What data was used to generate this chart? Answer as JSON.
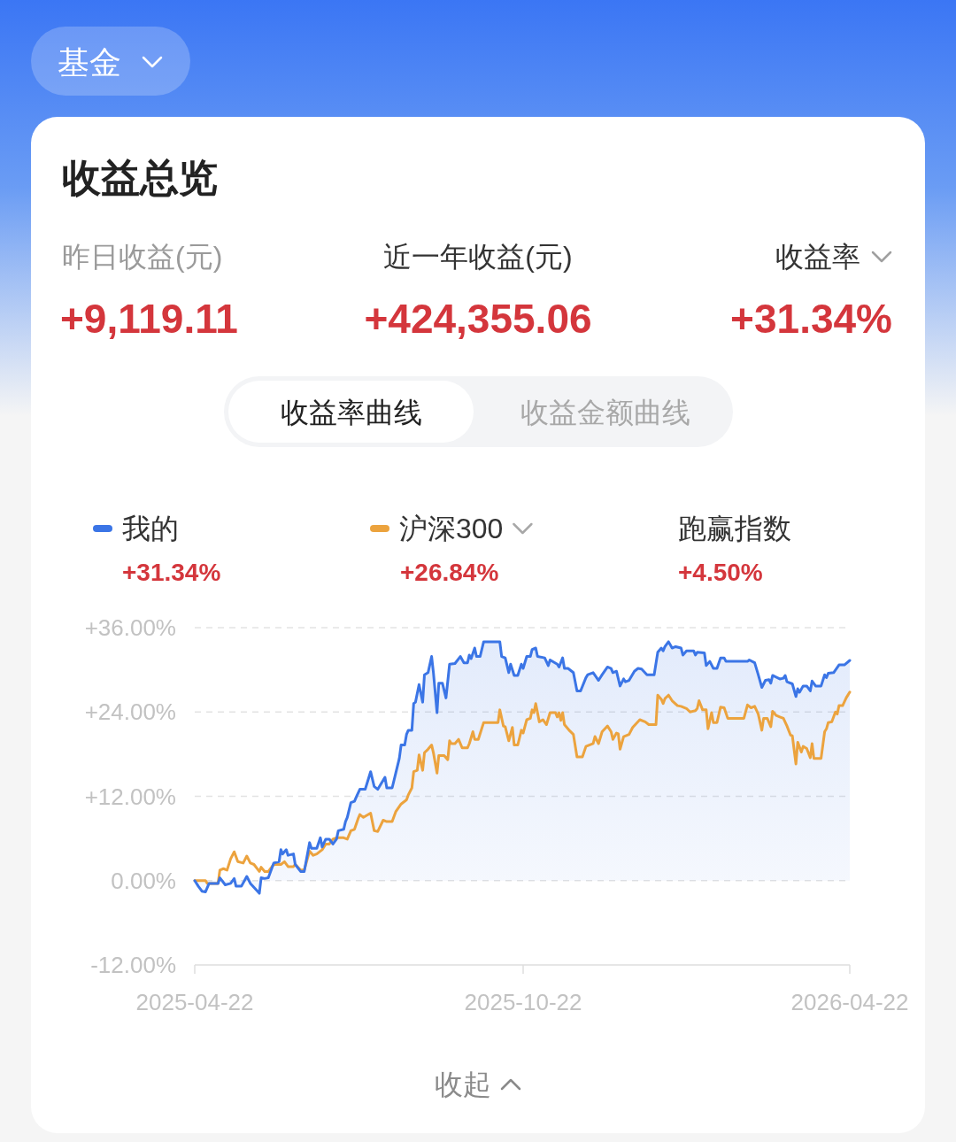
{
  "chart_data": {
    "type": "line",
    "title": "收益总览",
    "annotations": [
      "基金",
      "昨日收益(元)",
      "+9,119.11",
      "近一年收益(元)",
      "+424,355.06",
      "收益率",
      "+31.34%",
      "收益率曲线",
      "收益金额曲线",
      "+31.34%",
      "+26.84%",
      "跑赢指数",
      "+4.50%",
      "收起"
    ],
    "xlim": [
      "2025-04-22",
      "2026-04-22"
    ],
    "xticks": [
      "2025-04-22",
      "2025-10-22",
      "2026-04-22"
    ],
    "ylim": [
      -12,
      36
    ],
    "yticks": [
      {
        "value": 36,
        "label": "+36.00%"
      },
      {
        "value": 24,
        "label": "+24.00%"
      },
      {
        "value": 12,
        "label": "+12.00%"
      },
      {
        "value": 0,
        "label": "0.00%"
      },
      {
        "value": -12,
        "label": "-12.00%"
      }
    ],
    "grid": "y",
    "legend": "top",
    "series": [
      {
        "name": "我的",
        "type": "area",
        "color": "#3b75e6",
        "x": [
          "2025-04-22",
          "2025-04-24",
          "2025-04-26",
          "2025-04-28",
          "2025-04-30",
          "2025-05-05",
          "2025-05-06",
          "2025-05-09",
          "2025-05-12",
          "2025-05-14",
          "2025-05-15",
          "2025-05-18",
          "2025-05-21",
          "2025-05-23",
          "2025-05-28",
          "2025-05-29",
          "2025-05-31",
          "2025-06-02",
          "2025-06-05",
          "2025-06-08",
          "2025-06-09",
          "2025-06-10",
          "2025-06-12",
          "2025-06-13",
          "2025-06-16",
          "2025-06-17",
          "2025-06-20",
          "2025-06-22",
          "2025-06-25",
          "2025-06-26",
          "2025-06-29",
          "2025-07-01",
          "2025-07-02",
          "2025-07-04",
          "2025-07-06",
          "2025-07-08",
          "2025-07-10",
          "2025-07-11",
          "2025-07-14",
          "2025-07-15",
          "2025-07-16",
          "2025-07-18",
          "2025-07-20",
          "2025-07-21",
          "2025-07-23",
          "2025-07-26",
          "2025-07-29",
          "2025-07-31",
          "2025-08-02",
          "2025-08-06",
          "2025-08-07",
          "2025-08-10",
          "2025-08-12",
          "2025-08-14",
          "2025-08-15",
          "2025-08-17",
          "2025-08-18",
          "2025-08-19",
          "2025-08-21",
          "2025-08-22",
          "2025-08-23",
          "2025-08-25",
          "2025-08-27",
          "2025-08-28",
          "2025-08-30",
          "2025-09-01",
          "2025-09-02",
          "2025-09-04",
          "2025-09-05",
          "2025-09-07",
          "2025-09-09",
          "2025-09-11",
          "2025-09-14",
          "2025-09-17",
          "2025-09-19",
          "2025-09-21",
          "2025-09-22",
          "2025-09-23",
          "2025-09-25",
          "2025-09-26",
          "2025-09-28",
          "2025-09-30",
          "2025-10-09",
          "2025-10-10",
          "2025-10-12",
          "2025-10-14",
          "2025-10-15",
          "2025-10-17",
          "2025-10-19",
          "2025-10-21",
          "2025-10-22",
          "2025-10-24",
          "2025-10-26",
          "2025-10-27",
          "2025-10-29",
          "2025-10-30",
          "2025-11-03",
          "2025-11-05",
          "2025-11-06",
          "2025-11-10",
          "2025-11-11",
          "2025-11-13",
          "2025-11-14",
          "2025-11-16",
          "2025-11-19",
          "2025-11-21",
          "2025-11-23",
          "2025-11-26",
          "2025-11-27",
          "2025-11-30",
          "2025-12-03",
          "2025-12-05",
          "2025-12-08",
          "2025-12-10",
          "2025-12-11",
          "2025-12-13",
          "2025-12-15",
          "2025-12-17",
          "2025-12-18",
          "2025-12-20",
          "2025-12-23",
          "2025-12-25",
          "2025-12-27",
          "2025-12-30",
          "2026-01-03",
          "2026-01-05",
          "2026-01-07",
          "2026-01-08",
          "2026-01-09",
          "2026-01-11",
          "2026-01-13",
          "2026-01-15",
          "2026-01-18",
          "2026-01-19",
          "2026-01-21",
          "2026-01-25",
          "2026-01-26",
          "2026-01-27",
          "2026-01-31",
          "2026-02-01",
          "2026-02-03",
          "2026-02-05",
          "2026-02-07",
          "2026-02-09",
          "2026-02-11",
          "2026-02-12",
          "2026-02-24",
          "2026-02-25",
          "2026-02-28",
          "2026-03-02",
          "2026-03-04",
          "2026-03-06",
          "2026-03-08",
          "2026-03-09",
          "2026-03-10",
          "2026-03-14",
          "2026-03-16",
          "2026-03-17",
          "2026-03-18",
          "2026-03-21",
          "2026-03-23",
          "2026-03-24",
          "2026-03-25",
          "2026-03-27",
          "2026-03-29",
          "2026-03-31",
          "2026-04-01",
          "2026-04-03",
          "2026-04-06",
          "2026-04-08",
          "2026-04-09",
          "2026-04-10",
          "2026-04-13",
          "2026-04-16",
          "2026-04-19",
          "2026-04-22"
        ],
        "values": [
          0,
          -0.8,
          -1.5,
          -1.6,
          -0.4,
          -0.4,
          0.4,
          -0.6,
          -0.4,
          0.3,
          -0.8,
          -0.8,
          0.6,
          -0.4,
          -1.8,
          0.4,
          0.3,
          0.4,
          2.5,
          2.7,
          4.4,
          3.8,
          4.4,
          3.6,
          3.8,
          2.3,
          1.3,
          1.3,
          5.4,
          4.6,
          4.6,
          6.1,
          4.8,
          5.9,
          5.9,
          5.2,
          5.9,
          7.1,
          7.3,
          8.4,
          9.0,
          11.1,
          11.3,
          11.9,
          13.0,
          13.0,
          15.5,
          13.4,
          13.0,
          14.7,
          13.2,
          13.2,
          15.3,
          17.4,
          19.3,
          19.3,
          20.8,
          21.4,
          21.4,
          25.2,
          25.4,
          27.9,
          25.4,
          29.3,
          29.6,
          31.9,
          29.6,
          23.9,
          28.1,
          28.1,
          26.0,
          30.8,
          30.9,
          31.9,
          31.0,
          31.0,
          32.1,
          31.6,
          33.1,
          31.9,
          31.9,
          34.0,
          34.0,
          31.9,
          31.7,
          29.6,
          30.8,
          29.2,
          29.2,
          30.8,
          30.2,
          31.9,
          31.9,
          32.9,
          33.1,
          31.9,
          31.7,
          30.6,
          31.4,
          30.8,
          30.4,
          31.7,
          30.2,
          30.2,
          29.6,
          27.0,
          27.0,
          28.9,
          29.3,
          29.6,
          28.5,
          29.3,
          30.4,
          30.2,
          29.6,
          29.8,
          27.7,
          28.7,
          28.3,
          28.5,
          29.8,
          30.2,
          30.1,
          29.3,
          29.3,
          32.5,
          33.1,
          32.7,
          33.3,
          34.0,
          33.1,
          33.3,
          33.1,
          32.1,
          32.7,
          32.7,
          32.1,
          32.5,
          32.4,
          30.6,
          31.2,
          30.2,
          30.2,
          31.7,
          31.7,
          31.2,
          31.2,
          31.4,
          31.0,
          29.3,
          27.5,
          28.5,
          28.6,
          28.1,
          29.2,
          28.7,
          28.8,
          29.2,
          28.3,
          28.0,
          26.2,
          27.3,
          26.8,
          27.7,
          27.7,
          27.0,
          28.4,
          27.7,
          27.7,
          29.3,
          28.9,
          29.5,
          29.6,
          30.7,
          30.7,
          31.34
        ]
      },
      {
        "name": "沪深300",
        "color": "#eca33e",
        "x": [
          "2025-04-22",
          "2025-04-28",
          "2025-04-29",
          "2025-05-05",
          "2025-05-06",
          "2025-05-08",
          "2025-05-10",
          "2025-05-12",
          "2025-05-14",
          "2025-05-16",
          "2025-05-19",
          "2025-05-21",
          "2025-05-23",
          "2025-05-25",
          "2025-05-28",
          "2025-05-29",
          "2025-05-31",
          "2025-06-02",
          "2025-06-05",
          "2025-06-09",
          "2025-06-11",
          "2025-06-13",
          "2025-06-16",
          "2025-06-17",
          "2025-06-20",
          "2025-06-22",
          "2025-06-25",
          "2025-06-27",
          "2025-06-29",
          "2025-07-02",
          "2025-07-04",
          "2025-07-06",
          "2025-07-08",
          "2025-07-10",
          "2025-07-14",
          "2025-07-16",
          "2025-07-18",
          "2025-07-20",
          "2025-07-22",
          "2025-07-23",
          "2025-07-25",
          "2025-07-29",
          "2025-07-31",
          "2025-08-02",
          "2025-08-05",
          "2025-08-07",
          "2025-08-10",
          "2025-08-12",
          "2025-08-15",
          "2025-08-18",
          "2025-08-19",
          "2025-08-21",
          "2025-08-22",
          "2025-08-24",
          "2025-08-25",
          "2025-08-27",
          "2025-08-28",
          "2025-08-30",
          "2025-09-01",
          "2025-09-02",
          "2025-09-04",
          "2025-09-05",
          "2025-09-08",
          "2025-09-10",
          "2025-09-11",
          "2025-09-12",
          "2025-09-14",
          "2025-09-16",
          "2025-09-18",
          "2025-09-21",
          "2025-09-22",
          "2025-09-24",
          "2025-09-25",
          "2025-09-27",
          "2025-09-30",
          "2025-10-08",
          "2025-10-09",
          "2025-10-11",
          "2025-10-12",
          "2025-10-14",
          "2025-10-16",
          "2025-10-17",
          "2025-10-19",
          "2025-10-21",
          "2025-10-22",
          "2025-10-24",
          "2025-10-26",
          "2025-10-27",
          "2025-10-28",
          "2025-10-29",
          "2025-10-31",
          "2025-11-02",
          "2025-11-04",
          "2025-11-06",
          "2025-11-09",
          "2025-11-10",
          "2025-11-11",
          "2025-11-12",
          "2025-11-13",
          "2025-11-14",
          "2025-11-17",
          "2025-11-19",
          "2025-11-21",
          "2025-11-24",
          "2025-11-26",
          "2025-11-30",
          "2025-12-01",
          "2025-12-03",
          "2025-12-05",
          "2025-12-08",
          "2025-12-10",
          "2025-12-11",
          "2025-12-13",
          "2025-12-14",
          "2025-12-15",
          "2025-12-17",
          "2025-12-20",
          "2025-12-22",
          "2025-12-26",
          "2025-12-29",
          "2025-12-31",
          "2026-01-04",
          "2026-01-05",
          "2026-01-07",
          "2026-01-08",
          "2026-01-09",
          "2026-01-11",
          "2026-01-13",
          "2026-01-16",
          "2026-01-18",
          "2026-01-21",
          "2026-01-23",
          "2026-01-26",
          "2026-01-27",
          "2026-01-28",
          "2026-01-30",
          "2026-02-01",
          "2026-02-02",
          "2026-02-04",
          "2026-02-05",
          "2026-02-07",
          "2026-02-09",
          "2026-02-11",
          "2026-02-13",
          "2026-02-22",
          "2026-02-24",
          "2026-02-26",
          "2026-02-28",
          "2026-03-02",
          "2026-03-04",
          "2026-03-05",
          "2026-03-07",
          "2026-03-09",
          "2026-03-10",
          "2026-03-12",
          "2026-03-14",
          "2026-03-16",
          "2026-03-18",
          "2026-03-20",
          "2026-03-21",
          "2026-03-23",
          "2026-03-24",
          "2026-03-26",
          "2026-03-27",
          "2026-03-29",
          "2026-03-31",
          "2026-04-01",
          "2026-04-02",
          "2026-04-06",
          "2026-04-08",
          "2026-04-09",
          "2026-04-10",
          "2026-04-12",
          "2026-04-14",
          "2026-04-15",
          "2026-04-16",
          "2026-04-18",
          "2026-04-20",
          "2026-04-22"
        ],
        "values": [
          0,
          0,
          -0.4,
          -0.4,
          1.5,
          1.7,
          1.5,
          3.1,
          4.1,
          2.7,
          2.5,
          3.5,
          2.5,
          2.3,
          1.3,
          1.9,
          1.3,
          1.3,
          2.3,
          2.3,
          2.7,
          2.0,
          2.0,
          2.3,
          1.5,
          1.5,
          4.2,
          3.6,
          3.8,
          4.4,
          5.2,
          5.2,
          5.9,
          6.1,
          6.1,
          5.9,
          7.1,
          7.3,
          8.8,
          9.4,
          9.0,
          9.6,
          7.1,
          7.0,
          8.6,
          8.4,
          8.4,
          9.8,
          10.9,
          11.5,
          12.2,
          13.2,
          15.5,
          15.7,
          17.9,
          15.7,
          18.2,
          18.7,
          19.3,
          18.2,
          15.3,
          17.8,
          17.8,
          17.2,
          19.9,
          19.5,
          19.5,
          20.1,
          18.9,
          18.9,
          19.5,
          21.2,
          20.1,
          20.1,
          22.5,
          22.5,
          24.3,
          22.0,
          21.9,
          19.9,
          21.8,
          19.3,
          19.3,
          21.4,
          21.0,
          22.9,
          23.1,
          24.3,
          23.9,
          25.2,
          22.6,
          22.9,
          22.2,
          23.9,
          23.9,
          23.3,
          23.9,
          22.8,
          23.9,
          22.2,
          21.3,
          20.8,
          17.6,
          17.6,
          19.1,
          19.5,
          20.5,
          19.5,
          21.2,
          22.0,
          21.2,
          20.1,
          21.0,
          20.9,
          18.7,
          20.5,
          20.8,
          21.8,
          22.9,
          22.6,
          22.2,
          22.2,
          26.4,
          25.8,
          25.2,
          25.9,
          26.4,
          25.6,
          24.9,
          24.8,
          24.5,
          24.0,
          24.2,
          24.5,
          25.6,
          24.3,
          24.3,
          21.6,
          23.9,
          22.5,
          22.5,
          24.7,
          24.6,
          23.1,
          23.1,
          25.0,
          24.6,
          24.8,
          23.7,
          21.4,
          23.1,
          23.1,
          21.9,
          24.1,
          23.5,
          23.3,
          23.1,
          22.0,
          20.7,
          20.6,
          16.6,
          19.7,
          18.3,
          19.1,
          18.8,
          17.5,
          19.5,
          17.4,
          17.4,
          21.2,
          21.6,
          22.5,
          22.6,
          24.0,
          23.7,
          24.9,
          24.9,
          26.0,
          26.84
        ]
      }
    ]
  }
}
